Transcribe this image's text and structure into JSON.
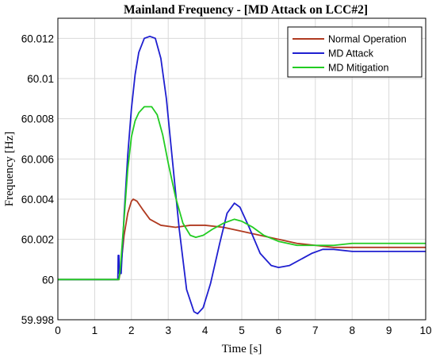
{
  "chart_data": {
    "type": "line",
    "title": "Mainland Frequency - [MD Attack on LCC#2]",
    "xlabel": "Time [s]",
    "ylabel": "Frequency [Hz]",
    "xlim": [
      0,
      10
    ],
    "ylim": [
      59.998,
      60.013
    ],
    "xticks": [
      "0",
      "1",
      "2",
      "3",
      "4",
      "5",
      "6",
      "7",
      "8",
      "9",
      "10"
    ],
    "yticks": [
      "59.998",
      "60",
      "60.002",
      "60.004",
      "60.006",
      "60.008",
      "60.01",
      "60.012"
    ],
    "grid": true,
    "legend_position": "top-right",
    "series": [
      {
        "name": "Normal Operation",
        "color": "#b03a20",
        "points": [
          [
            0,
            60.0
          ],
          [
            1.6,
            60.0
          ],
          [
            1.66,
            60.0
          ],
          [
            1.7,
            60.0004
          ],
          [
            1.8,
            60.0022
          ],
          [
            1.9,
            60.0033
          ],
          [
            2.0,
            60.0039
          ],
          [
            2.05,
            60.004
          ],
          [
            2.15,
            60.0039
          ],
          [
            2.3,
            60.0035
          ],
          [
            2.5,
            60.003
          ],
          [
            2.8,
            60.0027
          ],
          [
            3.2,
            60.0026
          ],
          [
            3.6,
            60.0027
          ],
          [
            4.0,
            60.0027
          ],
          [
            4.5,
            60.0026
          ],
          [
            5.0,
            60.0024
          ],
          [
            5.5,
            60.0022
          ],
          [
            6.0,
            60.002
          ],
          [
            6.5,
            60.0018
          ],
          [
            7.0,
            60.0017
          ],
          [
            7.5,
            60.0016
          ],
          [
            8.0,
            60.0016
          ],
          [
            9.0,
            60.0016
          ],
          [
            10.0,
            60.0016
          ]
        ]
      },
      {
        "name": "MD Attack",
        "color": "#1f1fd0",
        "points": [
          [
            0,
            60.0
          ],
          [
            1.6,
            60.0
          ],
          [
            1.63,
            60.0
          ],
          [
            1.64,
            60.0012
          ],
          [
            1.66,
            60.0012
          ],
          [
            1.67,
            60.0003
          ],
          [
            1.72,
            60.0003
          ],
          [
            1.8,
            60.0032
          ],
          [
            1.9,
            60.0062
          ],
          [
            2.0,
            60.0085
          ],
          [
            2.1,
            60.0102
          ],
          [
            2.2,
            60.0113
          ],
          [
            2.35,
            60.012
          ],
          [
            2.5,
            60.0121
          ],
          [
            2.65,
            60.012
          ],
          [
            2.8,
            60.011
          ],
          [
            2.95,
            60.009
          ],
          [
            3.1,
            60.0062
          ],
          [
            3.3,
            60.0025
          ],
          [
            3.5,
            59.9995
          ],
          [
            3.7,
            59.9984
          ],
          [
            3.8,
            59.9983
          ],
          [
            3.95,
            59.9986
          ],
          [
            4.15,
            59.9998
          ],
          [
            4.4,
            60.0018
          ],
          [
            4.6,
            60.0033
          ],
          [
            4.8,
            60.0038
          ],
          [
            4.95,
            60.0036
          ],
          [
            5.2,
            60.0026
          ],
          [
            5.5,
            60.0013
          ],
          [
            5.8,
            60.0007
          ],
          [
            6.0,
            60.0006
          ],
          [
            6.3,
            60.0007
          ],
          [
            6.6,
            60.001
          ],
          [
            6.9,
            60.0013
          ],
          [
            7.2,
            60.0015
          ],
          [
            7.5,
            60.0015
          ],
          [
            8.0,
            60.0014
          ],
          [
            9.0,
            60.0014
          ],
          [
            10.0,
            60.0014
          ]
        ]
      },
      {
        "name": "MD Mitigation",
        "color": "#22cc22",
        "points": [
          [
            0,
            60.0
          ],
          [
            1.6,
            60.0
          ],
          [
            1.66,
            60.0
          ],
          [
            1.7,
            60.0006
          ],
          [
            1.8,
            60.003
          ],
          [
            1.9,
            60.0055
          ],
          [
            2.0,
            60.0071
          ],
          [
            2.1,
            60.0079
          ],
          [
            2.2,
            60.0083
          ],
          [
            2.35,
            60.0086
          ],
          [
            2.55,
            60.0086
          ],
          [
            2.7,
            60.0082
          ],
          [
            2.85,
            60.0072
          ],
          [
            3.0,
            60.0058
          ],
          [
            3.2,
            60.0041
          ],
          [
            3.4,
            60.0028
          ],
          [
            3.6,
            60.0022
          ],
          [
            3.75,
            60.0021
          ],
          [
            3.95,
            60.0022
          ],
          [
            4.2,
            60.0025
          ],
          [
            4.5,
            60.0028
          ],
          [
            4.8,
            60.003
          ],
          [
            5.0,
            60.0029
          ],
          [
            5.3,
            60.0026
          ],
          [
            5.6,
            60.0022
          ],
          [
            6.0,
            60.0019
          ],
          [
            6.5,
            60.0017
          ],
          [
            7.0,
            60.0017
          ],
          [
            7.5,
            60.0017
          ],
          [
            8.0,
            60.0018
          ],
          [
            9.0,
            60.0018
          ],
          [
            10.0,
            60.0018
          ]
        ]
      }
    ]
  }
}
